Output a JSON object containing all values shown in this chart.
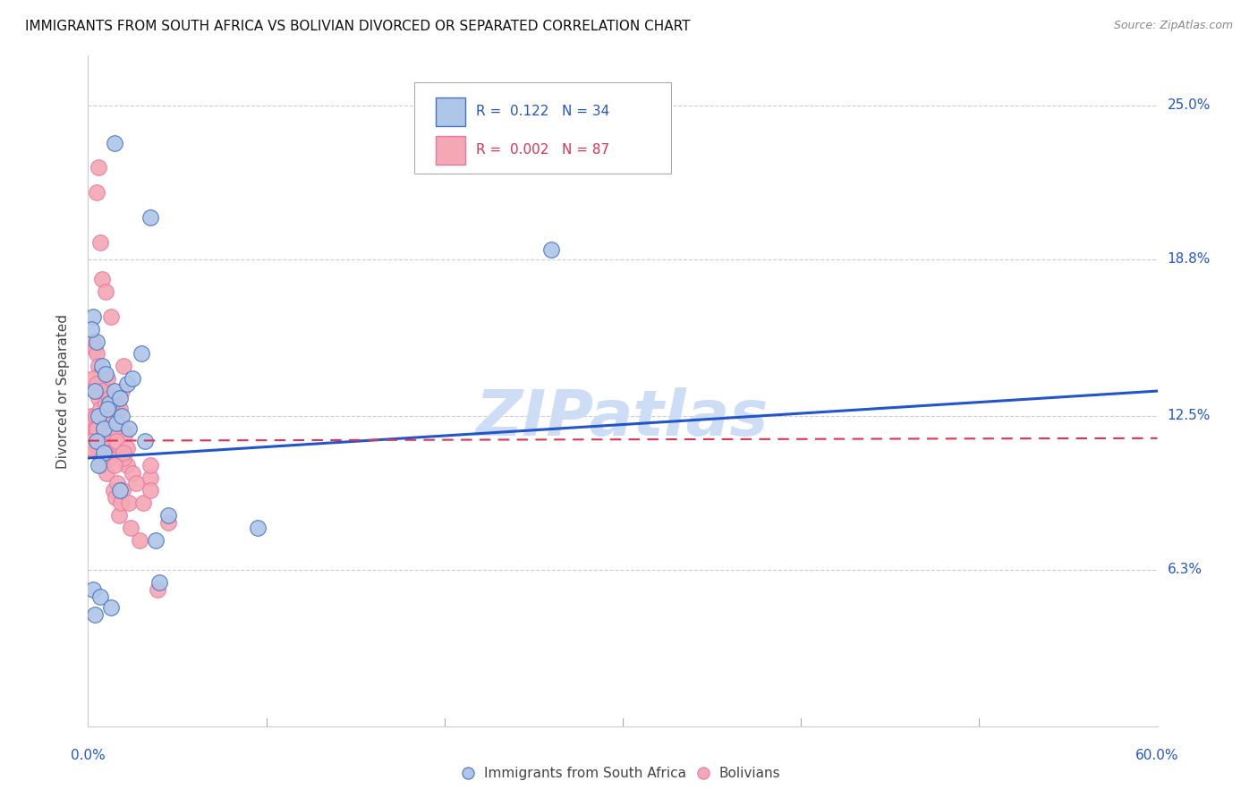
{
  "title": "IMMIGRANTS FROM SOUTH AFRICA VS BOLIVIAN DIVORCED OR SEPARATED CORRELATION CHART",
  "source": "Source: ZipAtlas.com",
  "ylabel": "Divorced or Separated",
  "ytick_labels": [
    "6.3%",
    "12.5%",
    "18.8%",
    "25.0%"
  ],
  "ytick_values": [
    6.3,
    12.5,
    18.8,
    25.0
  ],
  "xlim": [
    0.0,
    60.0
  ],
  "ylim": [
    0.0,
    27.0
  ],
  "legend1_label": "Immigrants from South Africa",
  "legend2_label": "Bolivians",
  "R1": "0.122",
  "N1": "34",
  "R2": "0.002",
  "N2": "87",
  "color_blue": "#aec6e8",
  "color_blue_dark": "#4472c4",
  "color_pink": "#f4a7b4",
  "color_pink_dark": "#e878a0",
  "color_trendline_blue": "#2255cc",
  "color_trendline_pink": "#dd3355",
  "watermark_color": "#ccddf5",
  "background_color": "#ffffff",
  "grid_color": "#cccccc",
  "trendline_blue_x0": 0.0,
  "trendline_blue_y0": 10.8,
  "trendline_blue_x1": 60.0,
  "trendline_blue_y1": 13.5,
  "trendline_pink_x0": 0.0,
  "trendline_pink_y0": 11.5,
  "trendline_pink_x1": 60.0,
  "trendline_pink_y1": 11.6,
  "blue_points_x": [
    1.5,
    3.5,
    0.3,
    0.5,
    0.8,
    1.0,
    1.2,
    1.5,
    1.8,
    2.2,
    2.5,
    3.0,
    0.2,
    0.4,
    0.6,
    0.9,
    1.1,
    1.6,
    1.9,
    2.3,
    3.2,
    4.5,
    9.5,
    26.0,
    0.5,
    0.9,
    4.0,
    3.8,
    0.3,
    0.7,
    1.3,
    0.4,
    0.6,
    1.8
  ],
  "blue_points_y": [
    23.5,
    20.5,
    16.5,
    15.5,
    14.5,
    14.2,
    13.0,
    13.5,
    13.2,
    13.8,
    14.0,
    15.0,
    16.0,
    13.5,
    12.5,
    12.0,
    12.8,
    12.2,
    12.5,
    12.0,
    11.5,
    8.5,
    8.0,
    19.2,
    11.5,
    11.0,
    5.8,
    7.5,
    5.5,
    5.2,
    4.8,
    4.5,
    10.5,
    9.5
  ],
  "pink_points_x": [
    0.5,
    0.6,
    0.7,
    0.8,
    1.0,
    1.3,
    0.3,
    0.4,
    0.5,
    0.6,
    0.7,
    0.8,
    0.9,
    1.0,
    1.1,
    1.2,
    1.3,
    1.4,
    1.5,
    1.6,
    1.7,
    1.8,
    1.9,
    2.0,
    0.2,
    0.25,
    0.3,
    0.35,
    0.4,
    0.45,
    0.5,
    0.55,
    0.6,
    0.65,
    0.7,
    0.75,
    0.8,
    0.85,
    0.9,
    0.95,
    1.05,
    1.15,
    1.25,
    1.35,
    1.45,
    1.55,
    1.65,
    1.75,
    1.85,
    1.95,
    2.1,
    2.2,
    2.3,
    2.5,
    2.7,
    2.9,
    3.1,
    3.5,
    3.9,
    0.3,
    0.4,
    0.5,
    0.6,
    0.7,
    0.8,
    0.9,
    1.0,
    1.1,
    1.2,
    1.3,
    1.4,
    1.5,
    1.6,
    1.8,
    2.0,
    2.2,
    2.4,
    0.15,
    0.2,
    1.0,
    1.2,
    1.5,
    2.0,
    3.5,
    4.5,
    3.5
  ],
  "pink_points_y": [
    21.5,
    22.5,
    19.5,
    18.0,
    17.5,
    16.5,
    15.5,
    15.2,
    15.0,
    14.5,
    14.2,
    13.8,
    13.5,
    13.5,
    14.0,
    13.2,
    13.0,
    12.8,
    12.5,
    12.5,
    13.0,
    12.8,
    13.5,
    14.5,
    12.5,
    12.2,
    11.8,
    11.5,
    12.0,
    12.5,
    12.0,
    11.5,
    11.0,
    11.2,
    11.5,
    10.5,
    11.0,
    11.5,
    12.0,
    11.8,
    10.2,
    11.0,
    12.5,
    13.0,
    9.5,
    9.2,
    9.8,
    8.5,
    9.0,
    9.5,
    11.8,
    10.5,
    9.0,
    10.2,
    9.8,
    7.5,
    9.0,
    10.0,
    5.5,
    14.0,
    13.5,
    13.8,
    13.2,
    12.8,
    13.5,
    12.5,
    13.0,
    12.8,
    13.2,
    11.8,
    12.5,
    12.0,
    11.5,
    12.2,
    10.8,
    11.2,
    8.0,
    11.5,
    11.2,
    11.0,
    10.8,
    10.5,
    11.0,
    9.5,
    8.2,
    10.5
  ]
}
